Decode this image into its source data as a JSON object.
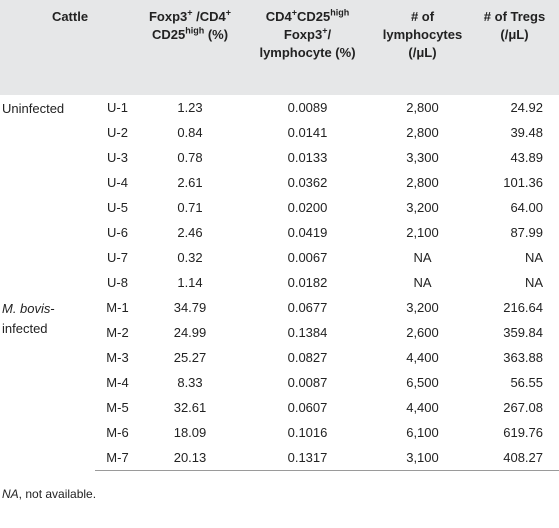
{
  "table": {
    "header": [
      [
        "Cattle"
      ],
      [
        "Foxp3",
        "+",
        " /CD4",
        "+",
        "CD25",
        "high",
        " (%)"
      ],
      [
        "CD4",
        "+",
        "CD25",
        "high",
        "Foxp3",
        "+",
        "/",
        "lymphocyte (%)"
      ],
      [
        "# of",
        "lymphocytes",
        "(/μL)"
      ],
      [
        "# of Tregs",
        "(/μL)"
      ]
    ],
    "groups": [
      {
        "label": [
          "Uninfected"
        ],
        "rows": [
          [
            "U-1",
            "1.23",
            "0.0089",
            "2,800",
            "24.92"
          ],
          [
            "U-2",
            "0.84",
            "0.0141",
            "2,800",
            "39.48"
          ],
          [
            "U-3",
            "0.78",
            "0.0133",
            "3,300",
            "43.89"
          ],
          [
            "U-4",
            "2.61",
            "0.0362",
            "2,800",
            "101.36"
          ],
          [
            "U-5",
            "0.71",
            "0.0200",
            "3,200",
            "64.00"
          ],
          [
            "U-6",
            "2.46",
            "0.0419",
            "2,100",
            "87.99"
          ],
          [
            "U-7",
            "0.32",
            "0.0067",
            "NA",
            "NA"
          ],
          [
            "U-8",
            "1.14",
            "0.0182",
            "NA",
            "NA"
          ]
        ]
      },
      {
        "label": [
          "M. bovis",
          "-infected"
        ],
        "rows": [
          [
            "M-1",
            "34.79",
            "0.0677",
            "3,200",
            "216.64"
          ],
          [
            "M-2",
            "24.99",
            "0.1384",
            "2,600",
            "359.84"
          ],
          [
            "M-3",
            "25.27",
            "0.0827",
            "4,400",
            "363.88"
          ],
          [
            "M-4",
            "8.33",
            "0.0087",
            "6,500",
            "56.55"
          ],
          [
            "M-5",
            "32.61",
            "0.0607",
            "4,400",
            "267.08"
          ],
          [
            "M-6",
            "18.09",
            "0.1016",
            "6,100",
            "619.76"
          ],
          [
            "M-7",
            "20.13",
            "0.1317",
            "3,100",
            "408.27"
          ]
        ]
      }
    ]
  },
  "footnote": [
    "NA",
    ", not available."
  ]
}
